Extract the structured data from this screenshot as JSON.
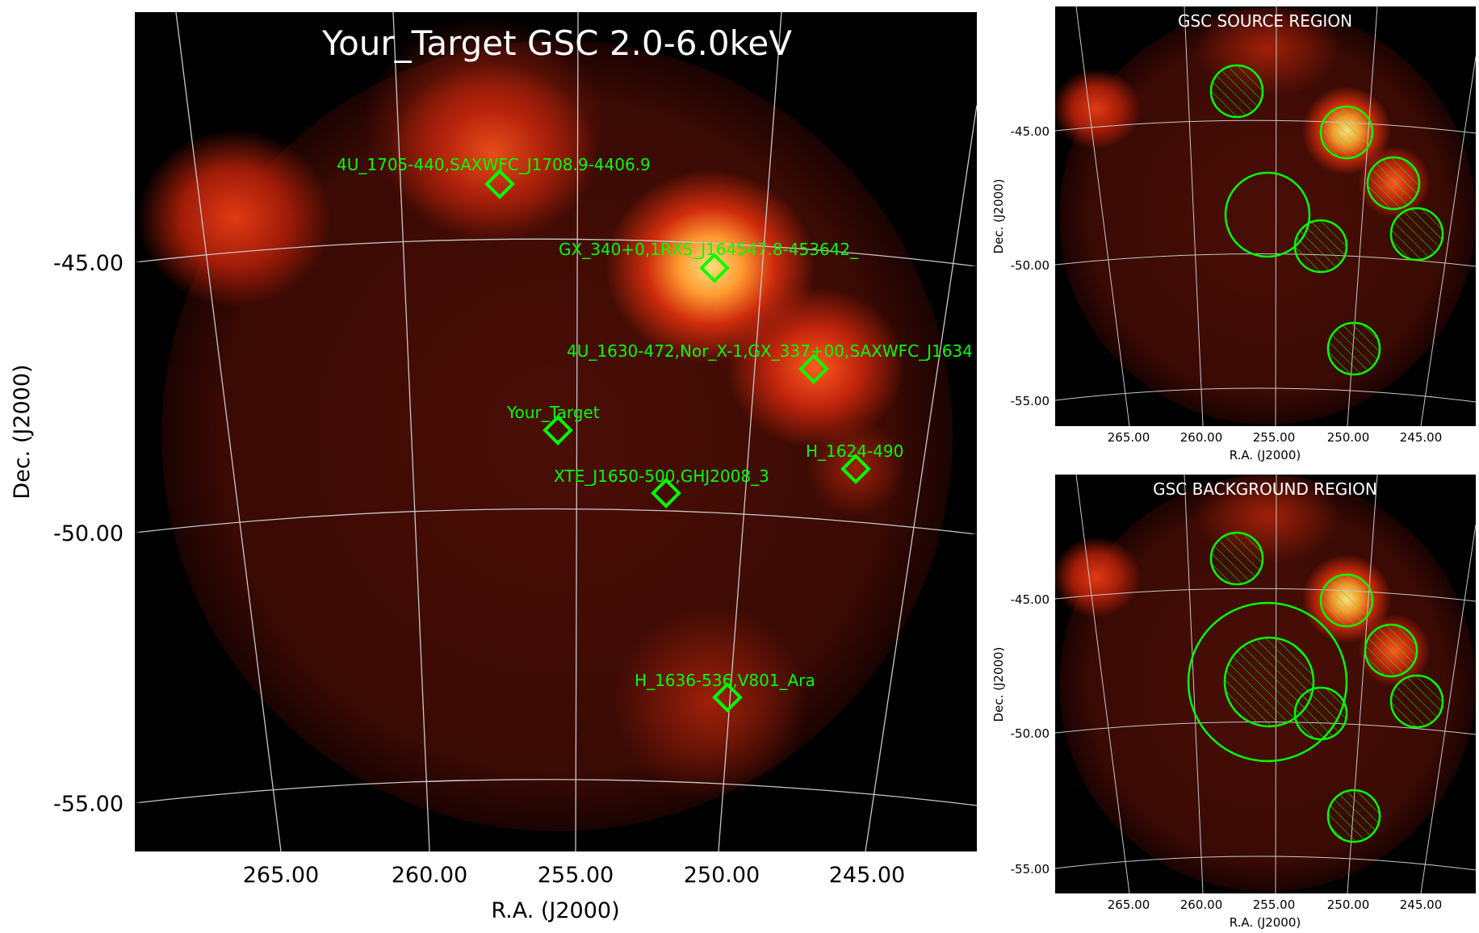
{
  "main_panel": {
    "title": "Your_Target GSC 2.0-6.0keV",
    "xlabel": "R.A. (J2000)",
    "ylabel": "Dec. (J2000)",
    "ra_ticks": [
      "265.00",
      "260.00",
      "255.00",
      "250.00",
      "245.00"
    ],
    "dec_ticks": [
      "-45.00",
      "-50.00",
      "-55.00"
    ],
    "sources": [
      {
        "label": "4U_1705-440,SAXWFC_J1708.9-4406.9"
      },
      {
        "label": "GX_340+0,1RXS_J164547.8-453642_"
      },
      {
        "label": "4U_1630-472,Nor_X-1,GX_337+00,SAXWFC_J1634"
      },
      {
        "label": "Your_Target"
      },
      {
        "label": "H_1624-490"
      },
      {
        "label": "XTE_J1650-500,GHJ2008_3"
      },
      {
        "label": "H_1636-536,V801_Ara"
      }
    ]
  },
  "source_panel": {
    "title": "GSC SOURCE REGION",
    "xlabel": "R.A. (J2000)",
    "ylabel": "Dec. (J2000)",
    "ra_ticks": [
      "265.00",
      "260.00",
      "255.00",
      "250.00",
      "245.00"
    ],
    "dec_ticks": [
      "-45.00",
      "-50.00",
      "-55.00"
    ]
  },
  "background_panel": {
    "title": "GSC BACKGROUND REGION",
    "xlabel": "R.A. (J2000)",
    "ylabel": "Dec. (J2000)",
    "ra_ticks": [
      "265.00",
      "260.00",
      "255.00",
      "250.00",
      "245.00"
    ],
    "dec_ticks": [
      "-45.00",
      "-50.00",
      "-55.00"
    ]
  },
  "colors": {
    "marker": "#00ff00",
    "grid": "#c8c8c8",
    "background": "#000000",
    "emission": "#8a1a0c",
    "hotspot": "#ffb050"
  }
}
